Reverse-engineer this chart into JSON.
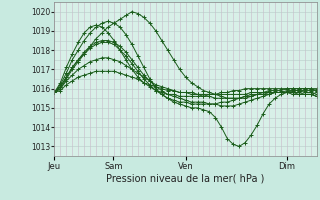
{
  "xlabel": "Pression niveau de la mer( hPa )",
  "bg_color": "#c8eae0",
  "plot_bg_color": "#d8f0e8",
  "grid_color_v": "#c8b8c8",
  "grid_color_h": "#b8ccc8",
  "line_color": "#1a5c1a",
  "ylim": [
    1012.5,
    1020.5
  ],
  "xtick_labels": [
    "Jeu",
    "Sam",
    "Ven",
    "Dim"
  ],
  "xtick_positions": [
    0.0,
    0.225,
    0.5,
    0.885
  ],
  "ytick_values": [
    1013,
    1014,
    1015,
    1016,
    1017,
    1018,
    1019,
    1020
  ],
  "series": [
    [
      1015.8,
      1016.0,
      1016.5,
      1017.0,
      1017.4,
      1017.8,
      1018.2,
      1018.6,
      1018.9,
      1019.2,
      1019.4,
      1019.6,
      1019.8,
      1020.0,
      1019.9,
      1019.7,
      1019.4,
      1019.0,
      1018.5,
      1018.0,
      1017.5,
      1017.0,
      1016.6,
      1016.3,
      1016.1,
      1015.9,
      1015.8,
      1015.7,
      1015.6,
      1015.5,
      1015.5,
      1015.5,
      1015.5,
      1015.6,
      1015.7,
      1015.7,
      1015.7,
      1015.8,
      1015.8,
      1015.8,
      1015.7,
      1015.7,
      1015.7,
      1015.7,
      1015.8
    ],
    [
      1015.8,
      1016.2,
      1016.8,
      1017.5,
      1018.0,
      1018.5,
      1018.9,
      1019.2,
      1019.4,
      1019.5,
      1019.4,
      1019.2,
      1018.8,
      1018.3,
      1017.7,
      1017.1,
      1016.5,
      1016.0,
      1015.7,
      1015.5,
      1015.3,
      1015.2,
      1015.1,
      1015.0,
      1015.0,
      1014.9,
      1014.8,
      1014.5,
      1014.0,
      1013.4,
      1013.1,
      1013.0,
      1013.2,
      1013.6,
      1014.1,
      1014.7,
      1015.2,
      1015.5,
      1015.7,
      1015.8,
      1015.8,
      1015.7,
      1015.7,
      1015.7,
      1015.6
    ],
    [
      1015.8,
      1016.1,
      1016.6,
      1017.1,
      1017.5,
      1017.9,
      1018.2,
      1018.4,
      1018.5,
      1018.5,
      1018.4,
      1018.2,
      1017.9,
      1017.5,
      1017.1,
      1016.7,
      1016.4,
      1016.1,
      1015.9,
      1015.7,
      1015.6,
      1015.5,
      1015.4,
      1015.3,
      1015.3,
      1015.3,
      1015.2,
      1015.2,
      1015.1,
      1015.1,
      1015.1,
      1015.2,
      1015.3,
      1015.4,
      1015.5,
      1015.6,
      1015.7,
      1015.8,
      1015.8,
      1015.8,
      1015.8,
      1015.8,
      1015.7,
      1015.7,
      1015.6
    ],
    [
      1015.8,
      1016.0,
      1016.4,
      1016.7,
      1017.0,
      1017.2,
      1017.4,
      1017.5,
      1017.6,
      1017.6,
      1017.5,
      1017.4,
      1017.2,
      1017.0,
      1016.8,
      1016.6,
      1016.4,
      1016.2,
      1016.1,
      1016.0,
      1015.9,
      1015.8,
      1015.8,
      1015.7,
      1015.7,
      1015.6,
      1015.6,
      1015.5,
      1015.5,
      1015.5,
      1015.5,
      1015.5,
      1015.6,
      1015.6,
      1015.7,
      1015.7,
      1015.8,
      1015.8,
      1015.8,
      1015.8,
      1015.9,
      1015.9,
      1015.9,
      1015.9,
      1015.9
    ],
    [
      1015.8,
      1015.9,
      1016.2,
      1016.4,
      1016.6,
      1016.7,
      1016.8,
      1016.9,
      1016.9,
      1016.9,
      1016.9,
      1016.8,
      1016.7,
      1016.6,
      1016.5,
      1016.3,
      1016.2,
      1016.1,
      1016.0,
      1015.9,
      1015.9,
      1015.8,
      1015.8,
      1015.8,
      1015.7,
      1015.7,
      1015.7,
      1015.7,
      1015.7,
      1015.7,
      1015.7,
      1015.7,
      1015.7,
      1015.8,
      1015.8,
      1015.8,
      1015.9,
      1015.9,
      1015.9,
      1016.0,
      1016.0,
      1016.0,
      1016.0,
      1016.0,
      1016.0
    ],
    [
      1015.8,
      1016.1,
      1016.6,
      1017.1,
      1017.5,
      1017.8,
      1018.1,
      1018.3,
      1018.4,
      1018.4,
      1018.3,
      1018.0,
      1017.7,
      1017.3,
      1016.9,
      1016.5,
      1016.2,
      1015.9,
      1015.7,
      1015.5,
      1015.4,
      1015.3,
      1015.3,
      1015.2,
      1015.2,
      1015.2,
      1015.2,
      1015.2,
      1015.3,
      1015.3,
      1015.4,
      1015.5,
      1015.6,
      1015.7,
      1015.7,
      1015.8,
      1015.8,
      1015.8,
      1015.8,
      1015.9,
      1015.9,
      1015.9,
      1015.8,
      1015.8,
      1015.7
    ],
    [
      1015.8,
      1016.3,
      1017.1,
      1017.8,
      1018.4,
      1018.9,
      1019.2,
      1019.3,
      1019.2,
      1018.9,
      1018.5,
      1018.0,
      1017.5,
      1017.0,
      1016.6,
      1016.3,
      1016.1,
      1015.9,
      1015.8,
      1015.7,
      1015.7,
      1015.6,
      1015.6,
      1015.6,
      1015.6,
      1015.6,
      1015.7,
      1015.7,
      1015.8,
      1015.8,
      1015.9,
      1015.9,
      1016.0,
      1016.0,
      1016.0,
      1016.0,
      1016.0,
      1016.0,
      1016.0,
      1016.0,
      1016.0,
      1016.0,
      1016.0,
      1016.0,
      1015.9
    ]
  ]
}
